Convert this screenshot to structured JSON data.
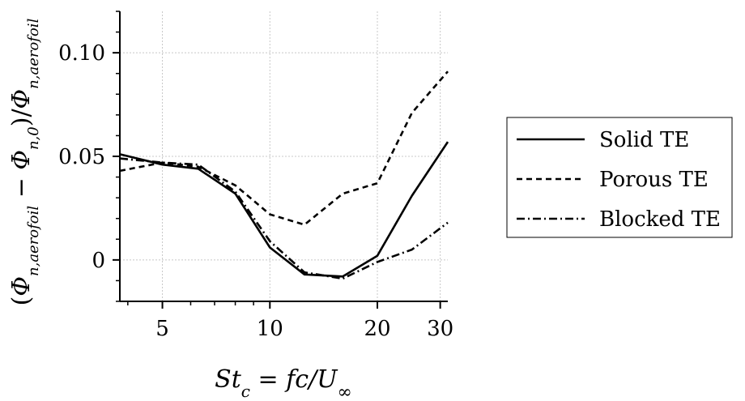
{
  "chart_data": {
    "type": "line",
    "xlabel": "St_c = fc/U∞",
    "ylabel": "(Φn,aerofoil − Φn,0)/Φn,aerofoil",
    "x_scale": "log",
    "xlim": [
      3.8,
      31.5
    ],
    "ylim": [
      -0.02,
      0.12
    ],
    "xticks": [
      5,
      10,
      20,
      30
    ],
    "xtick_labels": [
      "5",
      "10",
      "20",
      "30"
    ],
    "yticks": [
      0,
      0.05,
      0.1
    ],
    "ytick_labels": [
      "0",
      "0.05",
      "0.10"
    ],
    "grid": true,
    "legend_position": "right, outside",
    "series": [
      {
        "name": "Solid TE",
        "style": "solid",
        "x": [
          3.8,
          5,
          6.3,
          8,
          10,
          12.5,
          16,
          20,
          25,
          31.5
        ],
        "y": [
          0.051,
          0.046,
          0.044,
          0.032,
          0.006,
          -0.007,
          -0.008,
          0.002,
          0.031,
          0.057
        ]
      },
      {
        "name": "Porous TE",
        "style": "dashed",
        "x": [
          3.8,
          5,
          6.3,
          8,
          10,
          12.5,
          16,
          20,
          25,
          31.5
        ],
        "y": [
          0.043,
          0.047,
          0.045,
          0.036,
          0.022,
          0.017,
          0.032,
          0.037,
          0.071,
          0.091
        ]
      },
      {
        "name": "Blocked TE",
        "style": "dashdot",
        "x": [
          3.8,
          5,
          6.3,
          8,
          10,
          12.5,
          16,
          20,
          25,
          31.5
        ],
        "y": [
          0.049,
          0.047,
          0.046,
          0.033,
          0.009,
          -0.006,
          -0.009,
          -0.001,
          0.005,
          0.018
        ]
      }
    ]
  }
}
